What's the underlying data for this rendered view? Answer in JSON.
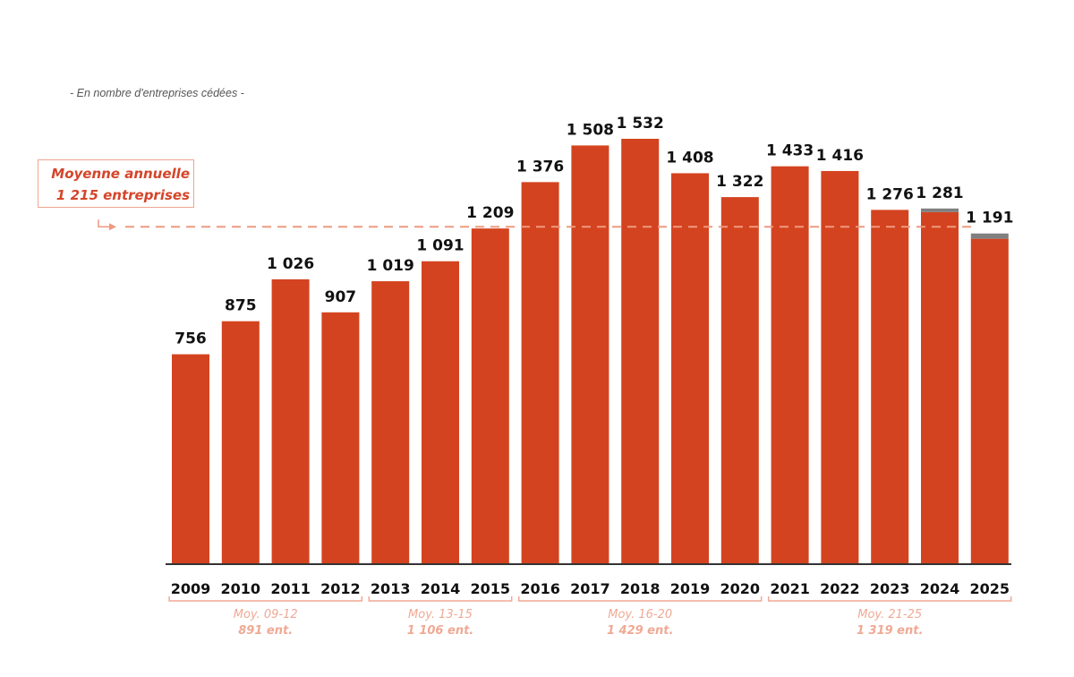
{
  "chart_data": {
    "type": "bar",
    "subtitle": "- En nombre d'entreprises cédées -",
    "categories": [
      "2009",
      "2010",
      "2011",
      "2012",
      "2013",
      "2014",
      "2015",
      "2016",
      "2017",
      "2018",
      "2019",
      "2020",
      "2021",
      "2022",
      "2023",
      "2024",
      "2025"
    ],
    "values": [
      756,
      875,
      1026,
      907,
      1019,
      1091,
      1209,
      1376,
      1508,
      1532,
      1408,
      1322,
      1433,
      1416,
      1276,
      1281,
      1191
    ],
    "value_labels": [
      "756",
      "875",
      "1 026",
      "907",
      "1 019",
      "1 091",
      "1 209",
      "1 376",
      "1 508",
      "1 532",
      "1 408",
      "1 322",
      "1 433",
      "1 416",
      "1 276",
      "1 281",
      "1 191"
    ],
    "grey_segment_approx": [
      0,
      0,
      0,
      0,
      0,
      0,
      0,
      0,
      0,
      0,
      0,
      0,
      0,
      0,
      0,
      13,
      19
    ],
    "ylim": [
      0,
      1532
    ],
    "grid": false,
    "average_line": {
      "value": 1215,
      "label_line1": "Moyenne annuelle",
      "label_line2": "1 215 entreprises"
    },
    "groups": [
      {
        "from": "2009",
        "to": "2012",
        "line1": "Moy. 09-12",
        "line2": "891 ent."
      },
      {
        "from": "2013",
        "to": "2015",
        "line1": "Moy. 13-15",
        "line2": "1 106 ent."
      },
      {
        "from": "2016",
        "to": "2020",
        "line1": "Moy. 16-20",
        "line2": "1 429 ent."
      },
      {
        "from": "2021",
        "to": "2025",
        "line1": "Moy. 21-25",
        "line2": "1 319 ent."
      }
    ],
    "colors": {
      "bar": "#d4431f",
      "grey": "#808080",
      "average": "#ee9a80",
      "group": "#f0a994",
      "text": "#111111"
    }
  }
}
